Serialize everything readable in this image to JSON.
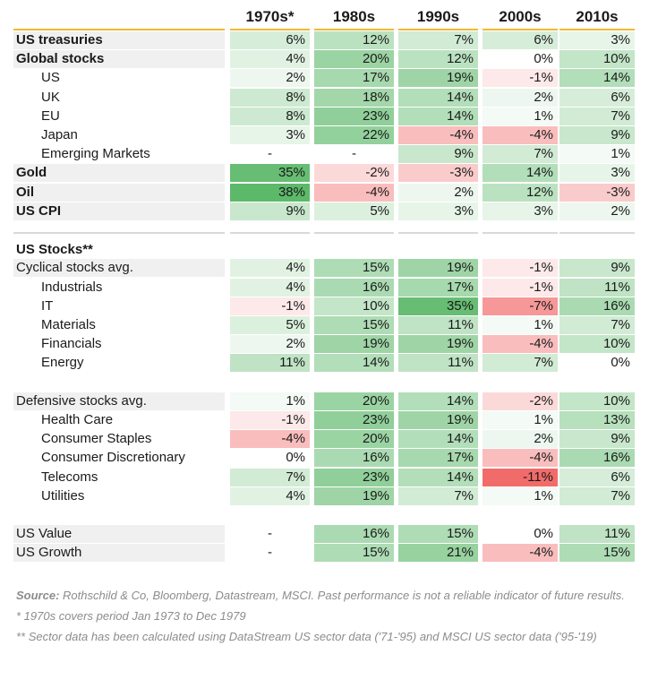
{
  "chart_data": {
    "type": "table",
    "columns": [
      "1970s*",
      "1980s",
      "1990s",
      "2000s",
      "2010s"
    ],
    "sections": [
      {
        "rows": [
          {
            "label": "US treasuries",
            "bold": true,
            "values": [
              "6%",
              "12%",
              "7%",
              "6%",
              "3%"
            ]
          },
          {
            "label": "Global stocks",
            "bold": true,
            "values": [
              "4%",
              "20%",
              "12%",
              "0%",
              "10%"
            ]
          },
          {
            "label": "US",
            "indent": true,
            "values": [
              "2%",
              "17%",
              "19%",
              "-1%",
              "14%"
            ]
          },
          {
            "label": "UK",
            "indent": true,
            "values": [
              "8%",
              "18%",
              "14%",
              "2%",
              "6%"
            ]
          },
          {
            "label": "EU",
            "indent": true,
            "values": [
              "8%",
              "23%",
              "14%",
              "1%",
              "7%"
            ]
          },
          {
            "label": "Japan",
            "indent": true,
            "values": [
              "3%",
              "22%",
              "-4%",
              "-4%",
              "9%"
            ]
          },
          {
            "label": "Emerging Markets",
            "indent": true,
            "values": [
              "-",
              "-",
              "9%",
              "7%",
              "1%"
            ]
          },
          {
            "label": "Gold",
            "bold": true,
            "values": [
              "35%",
              "-2%",
              "-3%",
              "14%",
              "3%"
            ]
          },
          {
            "label": "Oil",
            "bold": true,
            "values": [
              "38%",
              "-4%",
              "2%",
              "12%",
              "-3%"
            ]
          },
          {
            "label": "US CPI",
            "bold": true,
            "values": [
              "9%",
              "5%",
              "3%",
              "3%",
              "2%"
            ]
          }
        ]
      },
      {
        "title": "US Stocks**",
        "rows": [
          {
            "label": "Cyclical stocks avg.",
            "values": [
              "4%",
              "15%",
              "19%",
              "-1%",
              "9%"
            ]
          },
          {
            "label": "Industrials",
            "indent": true,
            "values": [
              "4%",
              "16%",
              "17%",
              "-1%",
              "11%"
            ]
          },
          {
            "label": "IT",
            "indent": true,
            "values": [
              "-1%",
              "10%",
              "35%",
              "-7%",
              "16%"
            ]
          },
          {
            "label": "Materials",
            "indent": true,
            "values": [
              "5%",
              "15%",
              "11%",
              "1%",
              "7%"
            ]
          },
          {
            "label": "Financials",
            "indent": true,
            "values": [
              "2%",
              "19%",
              "19%",
              "-4%",
              "10%"
            ]
          },
          {
            "label": "Energy",
            "indent": true,
            "values": [
              "11%",
              "14%",
              "11%",
              "7%",
              "0%"
            ]
          }
        ]
      },
      {
        "rows": [
          {
            "label": "Defensive stocks avg.",
            "values": [
              "1%",
              "20%",
              "14%",
              "-2%",
              "10%"
            ]
          },
          {
            "label": "Health Care",
            "indent": true,
            "values": [
              "-1%",
              "23%",
              "19%",
              "1%",
              "13%"
            ]
          },
          {
            "label": "Consumer Staples",
            "indent": true,
            "values": [
              "-4%",
              "20%",
              "14%",
              "2%",
              "9%"
            ]
          },
          {
            "label": "Consumer Discretionary",
            "indent": true,
            "values": [
              "0%",
              "16%",
              "17%",
              "-4%",
              "16%"
            ]
          },
          {
            "label": "Telecoms",
            "indent": true,
            "values": [
              "7%",
              "23%",
              "14%",
              "-11%",
              "6%"
            ]
          },
          {
            "label": "Utilities",
            "indent": true,
            "values": [
              "4%",
              "19%",
              "7%",
              "1%",
              "7%"
            ]
          }
        ]
      },
      {
        "rows": [
          {
            "label": "US Value",
            "values": [
              "-",
              "16%",
              "15%",
              "0%",
              "11%"
            ]
          },
          {
            "label": "US Growth",
            "values": [
              "-",
              "15%",
              "21%",
              "-4%",
              "15%"
            ]
          }
        ]
      }
    ],
    "colors": {
      "positive_max": "#5db96a",
      "negative_max": "#f26b6b",
      "neutral": "#ffffff",
      "label_shade": "#f0f0f0",
      "header_rule": "#f2b92f"
    }
  },
  "footnotes": {
    "source_label": "Source:",
    "source_text": " Rothschild & Co, Bloomberg, Datastream, MSCI. Past performance is not a reliable indicator of future results.",
    "note1": "* 1970s covers period Jan 1973 to Dec 1979",
    "note2": "** Sector data has been calculated using DataStream US sector data ('71-'95) and MSCI US sector data ('95-'19)"
  }
}
